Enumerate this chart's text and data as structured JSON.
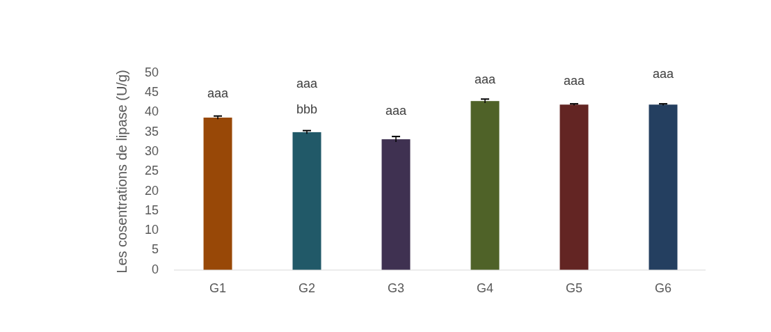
{
  "chart_data": {
    "type": "bar",
    "ylabel": "Les cosentrations de lipase (U/g)",
    "categories": [
      "G1",
      "G2",
      "G3",
      "G4",
      "G5",
      "G6"
    ],
    "values": [
      38.7,
      35.0,
      33.2,
      42.9,
      42.0,
      42.0
    ],
    "colors": [
      "#984807",
      "#215968",
      "#3f3151",
      "#4f6228",
      "#632523",
      "#243f60"
    ],
    "errors": [
      0.4,
      0.4,
      0.7,
      0.5,
      0.2,
      0.2
    ],
    "ylim": [
      0,
      50
    ],
    "yticks": [
      0,
      5,
      10,
      15,
      20,
      25,
      30,
      35,
      40,
      45,
      50
    ],
    "annotations": [
      "aaa",
      "aaa",
      "bbb",
      "aaa",
      "aaa",
      "aaa",
      "aaa"
    ]
  }
}
